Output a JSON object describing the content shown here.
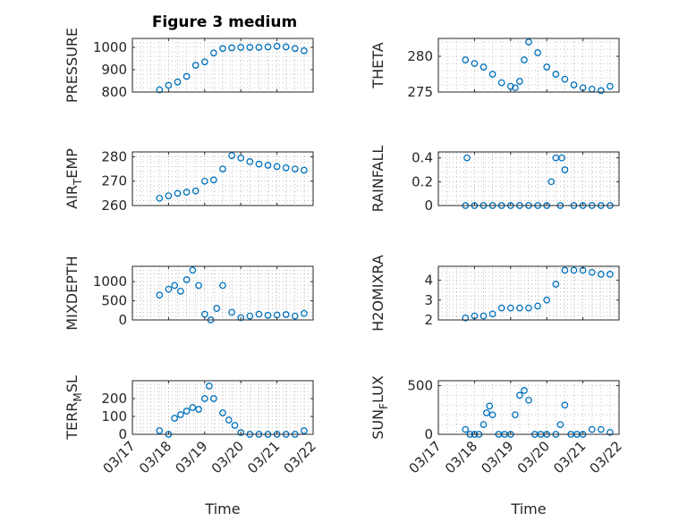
{
  "title": "Figure 3 medium",
  "colors": {
    "marker": "#0072BD",
    "axis": "#262626",
    "grid": "#b0b0b0"
  },
  "chart_data": [
    {
      "type": "scatter",
      "ylabel": "PRESSURE",
      "ylim": [
        800,
        1040
      ],
      "yticks": [
        800,
        900,
        1000
      ],
      "ytick_labels": [
        "800",
        "900",
        "1000"
      ],
      "grid": true,
      "xlabel": "",
      "x": [
        "03/17 18:00",
        "03/18 00:00",
        "03/18 06:00",
        "03/18 12:00",
        "03/18 18:00",
        "03/19 00:00",
        "03/19 06:00",
        "03/19 12:00",
        "03/19 18:00",
        "03/20 00:00",
        "03/20 06:00",
        "03/20 12:00",
        "03/20 18:00",
        "03/21 00:00",
        "03/21 06:00",
        "03/21 12:00",
        "03/21 18:00"
      ],
      "y": [
        810,
        830,
        845,
        870,
        920,
        935,
        975,
        995,
        998,
        1000,
        1000,
        1000,
        1002,
        1005,
        1002,
        995,
        985
      ]
    },
    {
      "type": "scatter",
      "ylabel": "THETA",
      "ylim": [
        275,
        282.5
      ],
      "yticks": [
        275,
        280
      ],
      "ytick_labels": [
        "275",
        "280"
      ],
      "grid": true,
      "xlabel": "",
      "x": [
        "03/17 18:00",
        "03/18 00:00",
        "03/18 06:00",
        "03/18 12:00",
        "03/18 18:00",
        "03/19 00:00",
        "03/19 03:00",
        "03/19 06:00",
        "03/19 09:00",
        "03/19 12:00",
        "03/19 18:00",
        "03/20 00:00",
        "03/20 06:00",
        "03/20 12:00",
        "03/20 18:00",
        "03/21 00:00",
        "03/21 06:00",
        "03/21 12:00",
        "03/21 18:00"
      ],
      "y": [
        279.5,
        279,
        278.5,
        277.5,
        276.3,
        275.8,
        275.6,
        276.5,
        279.5,
        282,
        280.5,
        278.5,
        277.5,
        276.8,
        276,
        275.6,
        275.4,
        275.2,
        275.8
      ]
    },
    {
      "type": "scatter",
      "ylabel": "AIR_TEMP",
      "ylim": [
        260,
        282
      ],
      "yticks": [
        260,
        270,
        280
      ],
      "ytick_labels": [
        "260",
        "270",
        "280"
      ],
      "grid": true,
      "xlabel": "",
      "x": [
        "03/17 18:00",
        "03/18 00:00",
        "03/18 06:00",
        "03/18 12:00",
        "03/18 18:00",
        "03/19 00:00",
        "03/19 06:00",
        "03/19 12:00",
        "03/19 18:00",
        "03/20 00:00",
        "03/20 06:00",
        "03/20 12:00",
        "03/20 18:00",
        "03/21 00:00",
        "03/21 06:00",
        "03/21 12:00",
        "03/21 18:00"
      ],
      "y": [
        263,
        264,
        265,
        265.5,
        266,
        270,
        270.5,
        275,
        280.5,
        279.5,
        278,
        277,
        276.5,
        276,
        275.5,
        275,
        274.5
      ]
    },
    {
      "type": "scatter",
      "ylabel": "RAINFALL",
      "ylim": [
        0,
        0.45
      ],
      "yticks": [
        0,
        0.2,
        0.4
      ],
      "ytick_labels": [
        "0",
        "0.2",
        "0.4"
      ],
      "grid": true,
      "xlabel": "",
      "x": [
        "03/17 18:00",
        "03/18 00:00",
        "03/18 06:00",
        "03/18 12:00",
        "03/18 18:00",
        "03/19 00:00",
        "03/19 06:00",
        "03/19 12:00",
        "03/19 18:00",
        "03/20 00:00",
        "03/20 03:00",
        "03/20 06:00",
        "03/20 09:00",
        "03/20 12:00",
        "03/20 18:00",
        "03/21 00:00",
        "03/21 06:00",
        "03/21 12:00",
        "03/21 18:00",
        "03/17 19:00",
        "03/20 10:00"
      ],
      "y": [
        0,
        0,
        0,
        0,
        0,
        0,
        0,
        0,
        0,
        0,
        0.2,
        0.4,
        0,
        0.3,
        0,
        0,
        0,
        0,
        0,
        0.4,
        0.4
      ]
    },
    {
      "type": "scatter",
      "ylabel": "MIXDEPTH",
      "ylim": [
        0,
        1400
      ],
      "yticks": [
        0,
        500,
        1000
      ],
      "ytick_labels": [
        "0",
        "500",
        "1000"
      ],
      "grid": true,
      "xlabel": "",
      "x": [
        "03/17 18:00",
        "03/18 00:00",
        "03/18 04:00",
        "03/18 08:00",
        "03/18 12:00",
        "03/18 16:00",
        "03/18 20:00",
        "03/19 00:00",
        "03/19 04:00",
        "03/19 08:00",
        "03/19 12:00",
        "03/19 18:00",
        "03/20 00:00",
        "03/20 06:00",
        "03/20 12:00",
        "03/20 18:00",
        "03/21 00:00",
        "03/21 06:00",
        "03/21 12:00",
        "03/21 18:00"
      ],
      "y": [
        650,
        800,
        900,
        750,
        1050,
        1300,
        900,
        150,
        0,
        300,
        900,
        200,
        60,
        100,
        150,
        120,
        130,
        140,
        100,
        170
      ]
    },
    {
      "type": "scatter",
      "ylabel": "H2OMIXRA",
      "ylim": [
        2,
        4.7
      ],
      "yticks": [
        2,
        3,
        4
      ],
      "ytick_labels": [
        "2",
        "3",
        "4"
      ],
      "grid": true,
      "xlabel": "",
      "x": [
        "03/17 18:00",
        "03/18 00:00",
        "03/18 06:00",
        "03/18 12:00",
        "03/18 18:00",
        "03/19 00:00",
        "03/19 06:00",
        "03/19 12:00",
        "03/19 18:00",
        "03/20 00:00",
        "03/20 06:00",
        "03/20 12:00",
        "03/20 18:00",
        "03/21 00:00",
        "03/21 06:00",
        "03/21 12:00",
        "03/21 18:00"
      ],
      "y": [
        2.1,
        2.2,
        2.2,
        2.3,
        2.6,
        2.6,
        2.6,
        2.6,
        2.7,
        3.0,
        3.8,
        4.5,
        4.5,
        4.5,
        4.4,
        4.3,
        4.3
      ]
    },
    {
      "type": "scatter",
      "ylabel": "TERR_MSL",
      "ylim": [
        0,
        300
      ],
      "yticks": [
        0,
        100,
        200
      ],
      "ytick_labels": [
        "0",
        "100",
        "200"
      ],
      "grid": true,
      "xlabel": "Time",
      "xtick_labels": [
        "03/17",
        "03/18",
        "03/19",
        "03/20",
        "03/21",
        "03/22"
      ],
      "x": [
        "03/17 18:00",
        "03/18 00:00",
        "03/18 04:00",
        "03/18 08:00",
        "03/18 12:00",
        "03/18 16:00",
        "03/18 20:00",
        "03/19 00:00",
        "03/19 03:00",
        "03/19 06:00",
        "03/19 12:00",
        "03/19 16:00",
        "03/19 20:00",
        "03/20 00:00",
        "03/20 06:00",
        "03/20 12:00",
        "03/20 18:00",
        "03/21 00:00",
        "03/21 06:00",
        "03/21 12:00",
        "03/21 18:00"
      ],
      "y": [
        20,
        0,
        90,
        110,
        130,
        150,
        140,
        200,
        270,
        200,
        120,
        80,
        50,
        10,
        0,
        0,
        0,
        0,
        0,
        0,
        20
      ]
    },
    {
      "type": "scatter",
      "ylabel": "SUN_FLUX",
      "ylim": [
        0,
        550
      ],
      "yticks": [
        0,
        500
      ],
      "ytick_labels": [
        "0",
        "500"
      ],
      "grid": true,
      "xlabel": "Time",
      "xtick_labels": [
        "03/17",
        "03/18",
        "03/19",
        "03/20",
        "03/21",
        "03/22"
      ],
      "x": [
        "03/17 18:00",
        "03/17 21:00",
        "03/18 00:00",
        "03/18 03:00",
        "03/18 06:00",
        "03/18 08:00",
        "03/18 10:00",
        "03/18 12:00",
        "03/18 16:00",
        "03/18 20:00",
        "03/19 00:00",
        "03/19 03:00",
        "03/19 06:00",
        "03/19 09:00",
        "03/19 12:00",
        "03/19 16:00",
        "03/19 20:00",
        "03/20 00:00",
        "03/20 06:00",
        "03/20 09:00",
        "03/20 12:00",
        "03/20 16:00",
        "03/20 20:00",
        "03/21 00:00",
        "03/21 06:00",
        "03/21 12:00",
        "03/21 18:00"
      ],
      "y": [
        50,
        0,
        0,
        0,
        100,
        220,
        290,
        200,
        0,
        0,
        0,
        200,
        400,
        450,
        350,
        0,
        0,
        0,
        0,
        100,
        300,
        0,
        0,
        0,
        50,
        50,
        20
      ]
    }
  ],
  "xaxis": {
    "start": "03/17 00:00",
    "end": "03/22 00:00"
  }
}
